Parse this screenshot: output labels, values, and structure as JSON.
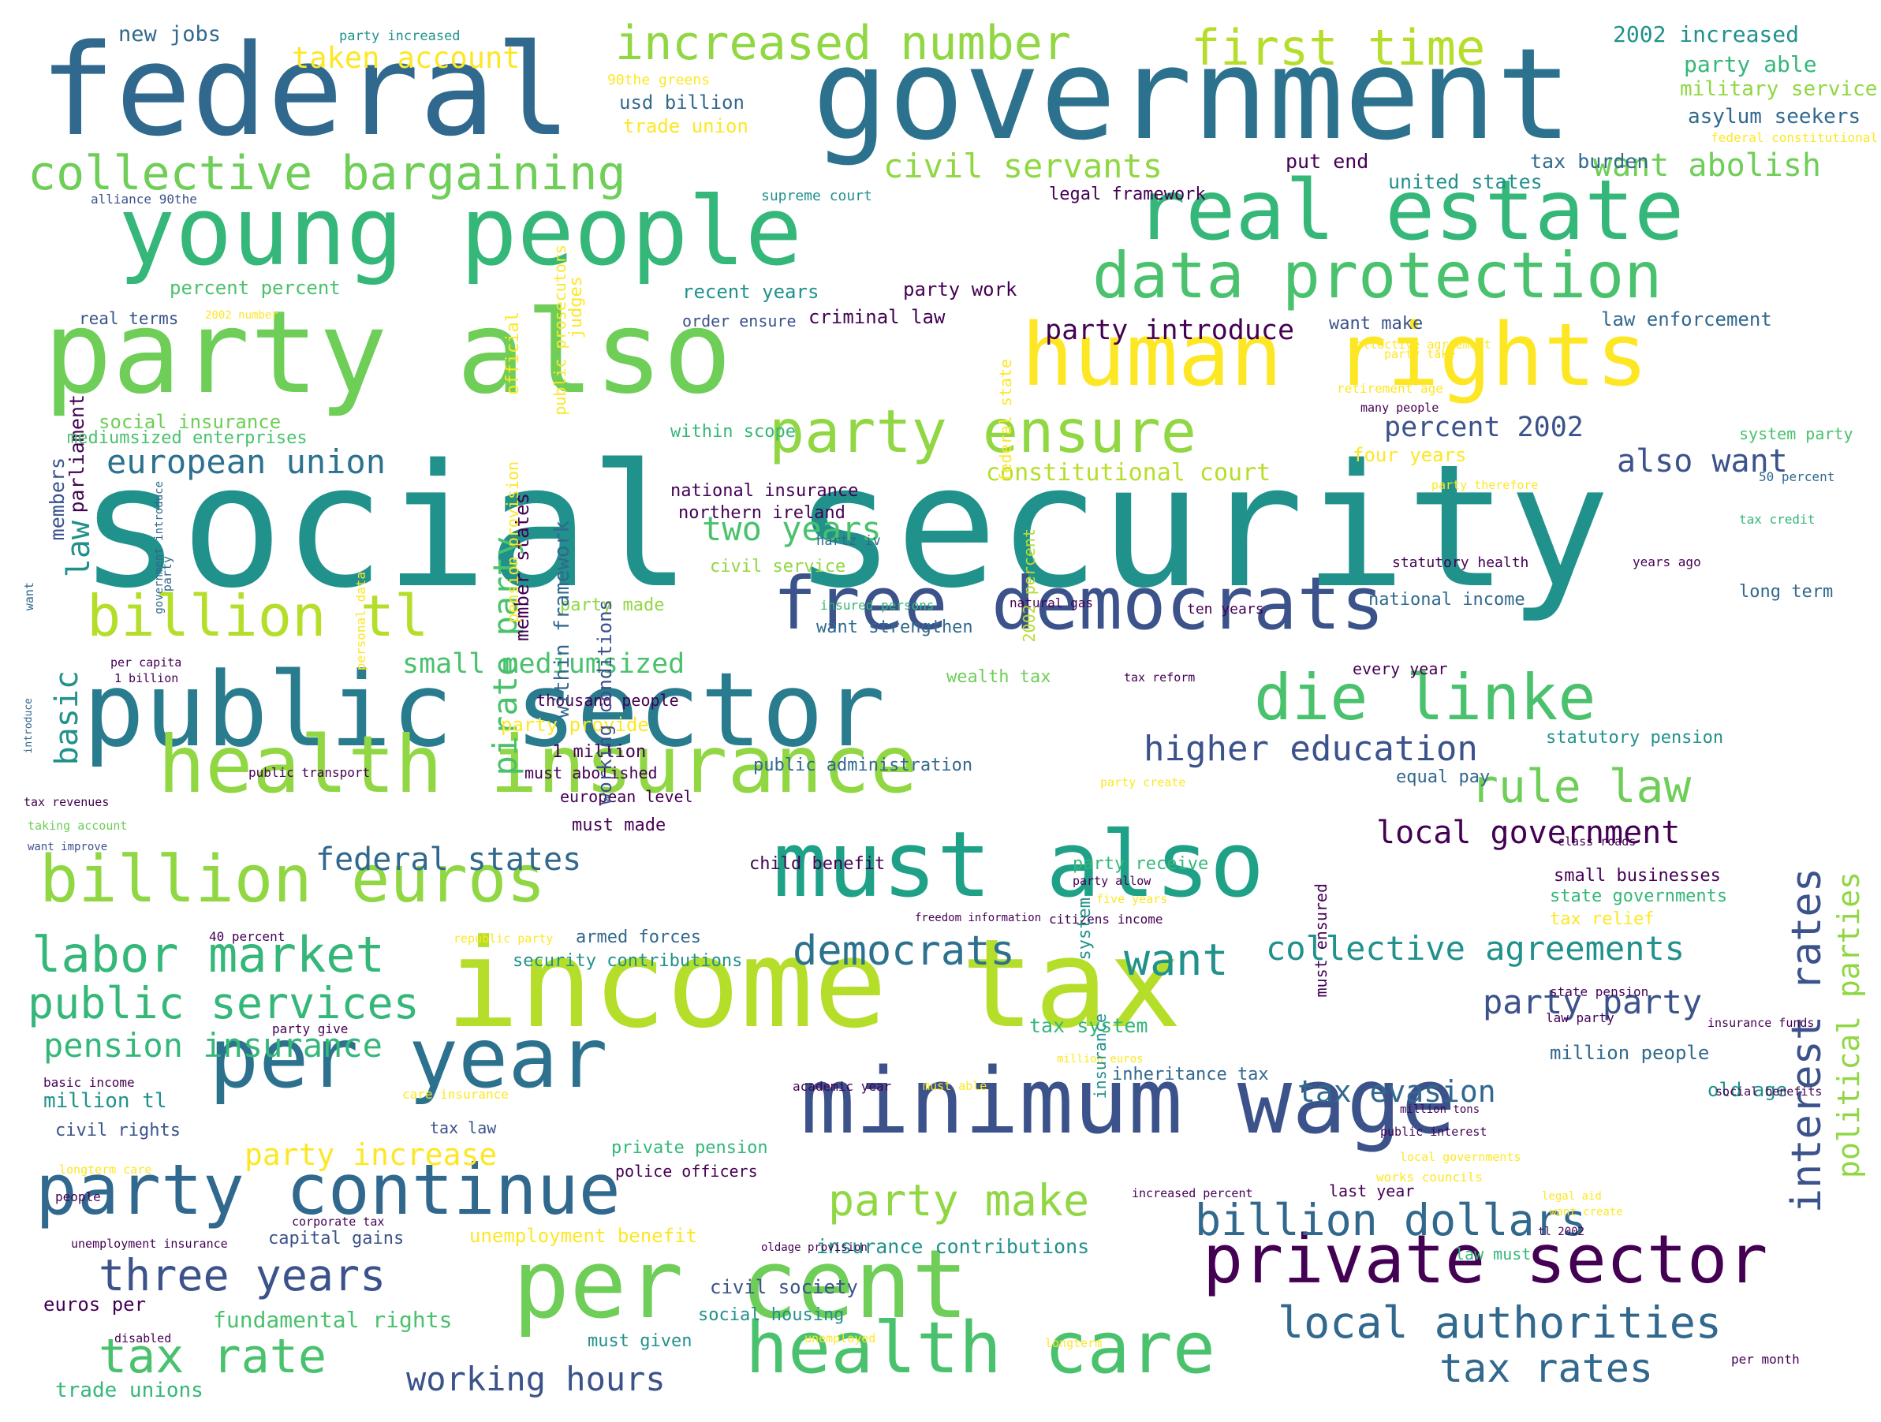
{
  "palette": {
    "background": "#ffffff",
    "darkPurple": "#440154",
    "indigo": "#3b528b",
    "blue": "#31688e",
    "teal": "#21918c",
    "green": "#35b779",
    "lightGreen": "#6ece58",
    "yellowGreen": "#b5de2b",
    "yellow": "#fde725"
  },
  "words": [
    {
      "text": "social security",
      "color": "#21918c"
    },
    {
      "text": "income tax",
      "color": "#b5de2b"
    },
    {
      "text": "federal",
      "color": "#31688e"
    },
    {
      "text": "government",
      "color": "#2c728e"
    },
    {
      "text": "party also",
      "color": "#6ece58"
    },
    {
      "text": "young people",
      "color": "#35b779"
    },
    {
      "text": "public sector",
      "color": "#287c8e"
    },
    {
      "text": "per cent",
      "color": "#6ece58"
    },
    {
      "text": "minimum wage",
      "color": "#3b528b"
    },
    {
      "text": "must also",
      "color": "#1fa187"
    },
    {
      "text": "human rights",
      "color": "#fde725"
    },
    {
      "text": "real estate",
      "color": "#35b779"
    },
    {
      "text": "free democrats",
      "color": "#3b528b"
    },
    {
      "text": "health insurance",
      "color": "#90d743"
    },
    {
      "text": "data protection",
      "color": "#4ac16d"
    },
    {
      "text": "per year",
      "color": "#2c728e"
    },
    {
      "text": "party continue",
      "color": "#31688e"
    },
    {
      "text": "health care",
      "color": "#4ac16d"
    },
    {
      "text": "private sector",
      "color": "#440154"
    },
    {
      "text": "billion euros",
      "color": "#90d743"
    },
    {
      "text": "die linke",
      "color": "#4ac16d"
    },
    {
      "text": "billion tl",
      "color": "#b5de2b"
    },
    {
      "text": "party ensure",
      "color": "#90d743"
    },
    {
      "text": "collective bargaining",
      "color": "#6ece58"
    },
    {
      "text": "increased number",
      "color": "#90d743"
    },
    {
      "text": "first time",
      "color": "#b5de2b"
    },
    {
      "text": "labor market",
      "color": "#35b779"
    },
    {
      "text": "public services",
      "color": "#35b779"
    },
    {
      "text": "three years",
      "color": "#3b528b"
    },
    {
      "text": "tax rate",
      "color": "#4ac16d"
    },
    {
      "text": "rule law",
      "color": "#6ece58"
    },
    {
      "text": "local government",
      "color": "#440154"
    },
    {
      "text": "interest rates",
      "color": "#3b528b"
    },
    {
      "text": "billion dollars",
      "color": "#31688e"
    },
    {
      "text": "local authorities",
      "color": "#31688e"
    },
    {
      "text": "tax rates",
      "color": "#31688e"
    },
    {
      "text": "party make",
      "color": "#90d743"
    },
    {
      "text": "democrats",
      "color": "#2c728e"
    },
    {
      "text": "want",
      "color": "#21918c"
    },
    {
      "text": "collective agreements",
      "color": "#21918c"
    },
    {
      "text": "higher education",
      "color": "#3b528b"
    },
    {
      "text": "european union",
      "color": "#2c728e"
    },
    {
      "text": "pension insurance",
      "color": "#35b779"
    },
    {
      "text": "federal states",
      "color": "#31688e"
    },
    {
      "text": "civil servants",
      "color": "#90d743"
    },
    {
      "text": "want abolish",
      "color": "#6ece58"
    },
    {
      "text": "two years",
      "color": "#4ac16d"
    },
    {
      "text": "small mediumsized",
      "color": "#4ac16d"
    },
    {
      "text": "party introduce",
      "color": "#440154"
    },
    {
      "text": "percent 2002",
      "color": "#3b528b"
    },
    {
      "text": "also want",
      "color": "#3b528b"
    },
    {
      "text": "constitutional court",
      "color": "#b5de2b"
    },
    {
      "text": "party party",
      "color": "#3b528b"
    },
    {
      "text": "tax evasion",
      "color": "#31688e"
    },
    {
      "text": "working hours",
      "color": "#3b528b"
    },
    {
      "text": "party increase",
      "color": "#fde725"
    },
    {
      "text": "taken account",
      "color": "#fde725"
    },
    {
      "text": "political parties",
      "color": "#90d743"
    },
    {
      "text": "new jobs",
      "color": "#31688e"
    },
    {
      "text": "2002 increased",
      "color": "#21918c"
    },
    {
      "text": "party able",
      "color": "#35b779"
    },
    {
      "text": "military service",
      "color": "#90d743"
    },
    {
      "text": "asylum seekers",
      "color": "#31688e"
    },
    {
      "text": "usd billion",
      "color": "#31688e"
    },
    {
      "text": "trade union",
      "color": "#fde725"
    },
    {
      "text": "tax burden",
      "color": "#31688e"
    },
    {
      "text": "put end",
      "color": "#440154"
    },
    {
      "text": "united states",
      "color": "#21918c"
    },
    {
      "text": "legal framework",
      "color": "#440154"
    },
    {
      "text": "percent percent",
      "color": "#4ac16d"
    },
    {
      "text": "recent years",
      "color": "#21918c"
    },
    {
      "text": "criminal law",
      "color": "#440154"
    },
    {
      "text": "party work",
      "color": "#440154"
    },
    {
      "text": "law enforcement",
      "color": "#31688e"
    },
    {
      "text": "want make",
      "color": "#3b528b"
    },
    {
      "text": "parliament",
      "color": "#440154"
    },
    {
      "text": "members",
      "color": "#3b528b"
    },
    {
      "text": "law",
      "color": "#21918c"
    },
    {
      "text": "basic",
      "color": "#21918c"
    },
    {
      "text": "pirate party",
      "color": "#4ac16d"
    },
    {
      "text": "real terms",
      "color": "#3b528b"
    },
    {
      "text": "order ensure",
      "color": "#3b528b"
    },
    {
      "text": "social insurance",
      "color": "#6ece58"
    },
    {
      "text": "mediumsized enterprises",
      "color": "#4ac16d"
    },
    {
      "text": "within scope",
      "color": "#35b779"
    },
    {
      "text": "national insurance",
      "color": "#440154"
    },
    {
      "text": "northern ireland",
      "color": "#440154"
    },
    {
      "text": "civil service",
      "color": "#90d743"
    },
    {
      "text": "party made",
      "color": "#90d743"
    },
    {
      "text": "want strengthen",
      "color": "#31688e"
    },
    {
      "text": "national income",
      "color": "#31688e"
    },
    {
      "text": "four years",
      "color": "#fde725"
    },
    {
      "text": "1 million",
      "color": "#440154"
    },
    {
      "text": "party provide",
      "color": "#fde725"
    },
    {
      "text": "public administration",
      "color": "#31688e"
    },
    {
      "text": "statutory pension",
      "color": "#21918c"
    },
    {
      "text": "equal pay",
      "color": "#31688e"
    },
    {
      "text": "must made",
      "color": "#440154"
    },
    {
      "text": "armed forces",
      "color": "#31688e"
    },
    {
      "text": "security contributions",
      "color": "#21918c"
    },
    {
      "text": "small businesses",
      "color": "#440154"
    },
    {
      "text": "state governments",
      "color": "#35b779"
    },
    {
      "text": "tax relief",
      "color": "#fde725"
    },
    {
      "text": "party receive",
      "color": "#35b779"
    },
    {
      "text": "child benefit",
      "color": "#440154"
    },
    {
      "text": "tax system",
      "color": "#35b779"
    },
    {
      "text": "million people",
      "color": "#31688e"
    },
    {
      "text": "inheritance tax",
      "color": "#31688e"
    },
    {
      "text": "old age",
      "color": "#21918c"
    },
    {
      "text": "million tl",
      "color": "#21918c"
    },
    {
      "text": "civil rights",
      "color": "#3b528b"
    },
    {
      "text": "tax law",
      "color": "#3b528b"
    },
    {
      "text": "private pension",
      "color": "#35b779"
    },
    {
      "text": "police officers",
      "color": "#440154"
    },
    {
      "text": "last year",
      "color": "#440154"
    },
    {
      "text": "capital gains",
      "color": "#3b528b"
    },
    {
      "text": "unemployment benefit",
      "color": "#fde725"
    },
    {
      "text": "insurance contributions",
      "color": "#21918c"
    },
    {
      "text": "civil society",
      "color": "#3b528b"
    },
    {
      "text": "euros per",
      "color": "#440154"
    },
    {
      "text": "fundamental rights",
      "color": "#4ac16d"
    },
    {
      "text": "social housing",
      "color": "#21918c"
    },
    {
      "text": "must given",
      "color": "#21918c"
    },
    {
      "text": "trade unions",
      "color": "#35b779"
    },
    {
      "text": "wealth tax",
      "color": "#6ece58"
    },
    {
      "text": "every year",
      "color": "#440154"
    },
    {
      "text": "thousand people",
      "color": "#440154"
    },
    {
      "text": "must abolished",
      "color": "#440154"
    },
    {
      "text": "european level",
      "color": "#440154"
    },
    {
      "text": "law must",
      "color": "#35b779"
    },
    {
      "text": "long term",
      "color": "#31688e"
    },
    {
      "text": "system party",
      "color": "#4ac16d"
    },
    {
      "text": "working conditions",
      "color": "#3b528b"
    },
    {
      "text": "within framework",
      "color": "#31688e"
    },
    {
      "text": "member states",
      "color": "#440154"
    },
    {
      "text": "supreme court",
      "color": "#21918c"
    },
    {
      "text": "party increased",
      "color": "#21918c"
    },
    {
      "text": "90the greens",
      "color": "#fde725"
    },
    {
      "text": "alliance 90the",
      "color": "#3b528b"
    },
    {
      "text": "2002 number",
      "color": "#fde725"
    },
    {
      "text": "federal constitutional",
      "color": "#fde725"
    },
    {
      "text": "collective agreement",
      "color": "#fde725"
    },
    {
      "text": "retirement age",
      "color": "#fde725"
    },
    {
      "text": "many people",
      "color": "#440154"
    },
    {
      "text": "party therefore",
      "color": "#fde725"
    },
    {
      "text": "party take",
      "color": "#fde725"
    },
    {
      "text": "50 percent",
      "color": "#31688e"
    },
    {
      "text": "tax credit",
      "color": "#35b779"
    },
    {
      "text": "years ago",
      "color": "#440154"
    },
    {
      "text": "statutory health",
      "color": "#440154"
    },
    {
      "text": "natural gas",
      "color": "#440154"
    },
    {
      "text": "insured persons",
      "color": "#35b779"
    },
    {
      "text": "hartz iv",
      "color": "#31688e"
    },
    {
      "text": "tax reform",
      "color": "#440154"
    },
    {
      "text": "ten years",
      "color": "#440154"
    },
    {
      "text": "per capita",
      "color": "#440154"
    },
    {
      "text": "1 billion",
      "color": "#440154"
    },
    {
      "text": "tax revenues",
      "color": "#440154"
    },
    {
      "text": "taking account",
      "color": "#6ece58"
    },
    {
      "text": "want improve",
      "color": "#3b528b"
    },
    {
      "text": "public transport",
      "color": "#440154"
    },
    {
      "text": "party create",
      "color": "#fde725"
    },
    {
      "text": "class roads",
      "color": "#440154"
    },
    {
      "text": "party allow",
      "color": "#440154"
    },
    {
      "text": "five years",
      "color": "#fde725"
    },
    {
      "text": "freedom information",
      "color": "#440154"
    },
    {
      "text": "citizens income",
      "color": "#440154"
    },
    {
      "text": "republic party",
      "color": "#fde725"
    },
    {
      "text": "40 percent",
      "color": "#440154"
    },
    {
      "text": "party give",
      "color": "#440154"
    },
    {
      "text": "basic income",
      "color": "#440154"
    },
    {
      "text": "care insurance",
      "color": "#fde725"
    },
    {
      "text": "academic year",
      "color": "#440154"
    },
    {
      "text": "must able",
      "color": "#fde725"
    },
    {
      "text": "million euros",
      "color": "#fde725"
    },
    {
      "text": "state pension",
      "color": "#440154"
    },
    {
      "text": "law party",
      "color": "#440154"
    },
    {
      "text": "insurance funds",
      "color": "#440154"
    },
    {
      "text": "social benefits",
      "color": "#440154"
    },
    {
      "text": "million tons",
      "color": "#440154"
    },
    {
      "text": "public interest",
      "color": "#440154"
    },
    {
      "text": "local governments",
      "color": "#fde725"
    },
    {
      "text": "works councils",
      "color": "#fde725"
    },
    {
      "text": "legal aid",
      "color": "#fde725"
    },
    {
      "text": "increased percent",
      "color": "#440154"
    },
    {
      "text": "want create",
      "color": "#fde725"
    },
    {
      "text": "tl 2002",
      "color": "#440154"
    },
    {
      "text": "oldage provision",
      "color": "#440154"
    },
    {
      "text": "corporate tax",
      "color": "#440154"
    },
    {
      "text": "unemployment insurance",
      "color": "#440154"
    },
    {
      "text": "longterm care",
      "color": "#fde725"
    },
    {
      "text": "people",
      "color": "#440154"
    },
    {
      "text": "disabled",
      "color": "#440154"
    },
    {
      "text": "unemployed",
      "color": "#fde725"
    },
    {
      "text": "longterm",
      "color": "#fde725"
    },
    {
      "text": "per month",
      "color": "#440154"
    },
    {
      "text": "government introduce",
      "color": "#31688e"
    },
    {
      "text": "party",
      "color": "#31688e"
    },
    {
      "text": "want",
      "color": "#31688e"
    },
    {
      "text": "introduce",
      "color": "#31688e"
    },
    {
      "text": "personal data",
      "color": "#fde725"
    },
    {
      "text": "pension provision",
      "color": "#fde725"
    },
    {
      "text": "official",
      "color": "#fde725"
    },
    {
      "text": "public prosecutors",
      "color": "#fde725"
    },
    {
      "text": "judges",
      "color": "#fde725"
    },
    {
      "text": "federal state",
      "color": "#fde725"
    },
    {
      "text": "2002 percent",
      "color": "#b5de2b"
    },
    {
      "text": "system",
      "color": "#21918c"
    },
    {
      "text": "insurance",
      "color": "#21918c"
    },
    {
      "text": "must ensured",
      "color": "#440154"
    }
  ]
}
